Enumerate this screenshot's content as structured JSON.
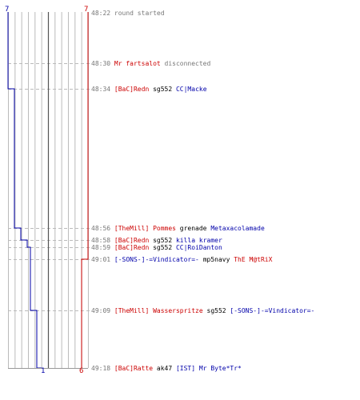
{
  "scores": {
    "blue_top": "7",
    "red_top": "7",
    "blue_bottom": "1",
    "red_bottom": "6"
  },
  "events": [
    {
      "time": "48:22",
      "parts": [
        {
          "text": "round started",
          "color": "grey"
        }
      ]
    },
    {
      "time": "48:30",
      "parts": [
        {
          "text": "Mr fartsalot",
          "color": "red"
        },
        {
          "text": " disconnected",
          "color": "grey"
        }
      ]
    },
    {
      "time": "48:34",
      "parts": [
        {
          "text": "[BaC]Redn",
          "color": "red"
        },
        {
          "text": " sg552 ",
          "color": "black"
        },
        {
          "text": "CC|Macke",
          "color": "blue"
        }
      ]
    },
    {
      "time": "48:56",
      "parts": [
        {
          "text": "[TheMill] Pommes",
          "color": "red"
        },
        {
          "text": " grenade ",
          "color": "black"
        },
        {
          "text": "Metaxacolamade",
          "color": "blue"
        }
      ]
    },
    {
      "time": "48:58",
      "parts": [
        {
          "text": "[BaC]Redn",
          "color": "red"
        },
        {
          "text": " sg552 ",
          "color": "black"
        },
        {
          "text": "killa kramer",
          "color": "blue"
        }
      ]
    },
    {
      "time": "48:59",
      "parts": [
        {
          "text": "[BaC]Redn",
          "color": "red"
        },
        {
          "text": " sg552 ",
          "color": "black"
        },
        {
          "text": "CC|RoiDanton",
          "color": "blue"
        }
      ]
    },
    {
      "time": "49:01",
      "parts": [
        {
          "text": "[-SONS-]-=Vindicator=-",
          "color": "blue"
        },
        {
          "text": " mp5navy ",
          "color": "black"
        },
        {
          "text": "ThE M@tRiX",
          "color": "red"
        }
      ]
    },
    {
      "time": "49:09",
      "parts": [
        {
          "text": "[TheMill] Wasserspritze",
          "color": "red"
        },
        {
          "text": " sg552 ",
          "color": "black"
        },
        {
          "text": "[-SONS-]-=Vindicator=-",
          "color": "blue"
        }
      ]
    },
    {
      "time": "49:18",
      "parts": [
        {
          "text": "[BaC]Ratte",
          "color": "red"
        },
        {
          "text": " ak47 ",
          "color": "black"
        },
        {
          "text": "[IST] Mr Byte*Tr*",
          "color": "blue"
        }
      ]
    }
  ],
  "colors": {
    "blue": "#0000aa",
    "red": "#cc0000",
    "grid": "#bbbbbb",
    "dash": "#bbbbbb",
    "center": "#555555"
  }
}
